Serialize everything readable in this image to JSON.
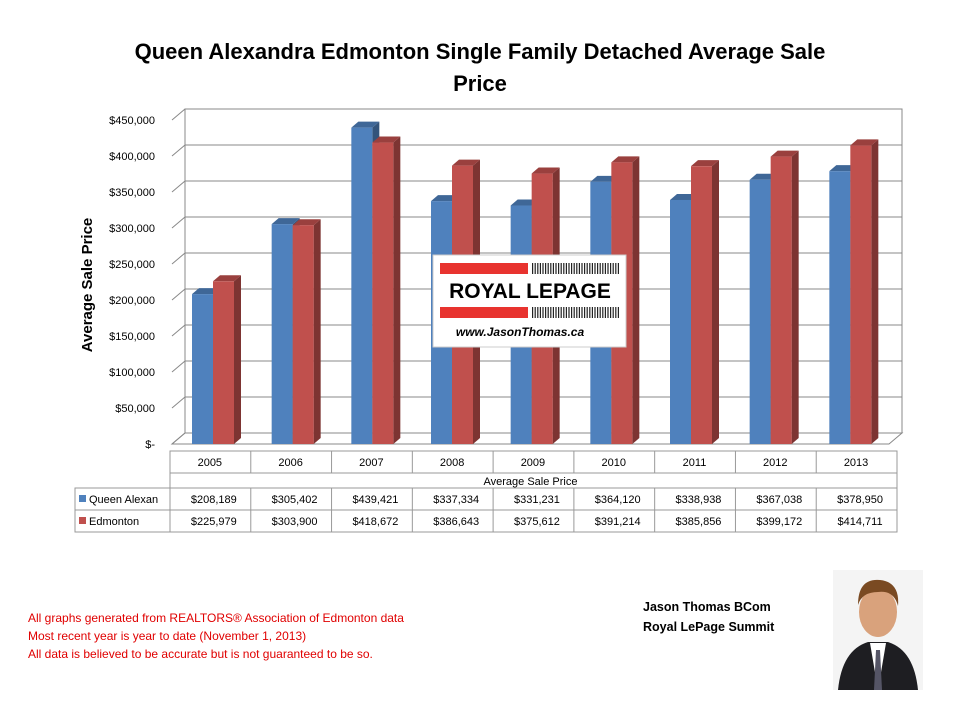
{
  "chart_data": {
    "type": "bar3d",
    "title": "Queen Alexandra Edmonton Single Family Detached Average Sale Price",
    "y_label": "Average Sale Price",
    "x_label": "Average Sale Price",
    "categories": [
      "2005",
      "2006",
      "2007",
      "2008",
      "2009",
      "2010",
      "2011",
      "2012",
      "2013"
    ],
    "series": [
      {
        "name": "Queen Alexan",
        "color": "#4f81bd",
        "values": [
          208189,
          305402,
          439421,
          337334,
          331231,
          364120,
          338938,
          367038,
          378950
        ],
        "value_labels": [
          "$208,189",
          "$305,402",
          "$439,421",
          "$337,334",
          "$331,231",
          "$364,120",
          "$338,938",
          "$367,038",
          "$378,950"
        ]
      },
      {
        "name": "Edmonton",
        "color": "#c0504d",
        "values": [
          225979,
          303900,
          418672,
          386643,
          375612,
          391214,
          385856,
          399172,
          414711
        ],
        "value_labels": [
          "$225,979",
          "$303,900",
          "$418,672",
          "$386,643",
          "$375,612",
          "$391,214",
          "$385,856",
          "$399,172",
          "$414,711"
        ]
      }
    ],
    "ylim": [
      0,
      450000
    ],
    "yticks": [
      {
        "value": 0,
        "label": "$-"
      },
      {
        "value": 50000,
        "label": "$50,000"
      },
      {
        "value": 100000,
        "label": "$100,000"
      },
      {
        "value": 150000,
        "label": "$150,000"
      },
      {
        "value": 200000,
        "label": "$200,000"
      },
      {
        "value": 250000,
        "label": "$250,000"
      },
      {
        "value": 300000,
        "label": "$300,000"
      },
      {
        "value": 350000,
        "label": "$350,000"
      },
      {
        "value": 400000,
        "label": "$400,000"
      },
      {
        "value": 450000,
        "label": "$450,000"
      }
    ],
    "grid": true
  },
  "logo": {
    "brand": "ROYAL LEPAGE",
    "url": "www.JasonThomas.ca"
  },
  "footer": {
    "notes": [
      "All graphs generated from REALTORS® Association of Edmonton data",
      "Most recent year is year to date (November 1, 2013)",
      "All data is believed to be accurate but is not guaranteed to be so."
    ],
    "author": [
      "Jason Thomas BCom",
      "Royal LePage Summit"
    ]
  }
}
